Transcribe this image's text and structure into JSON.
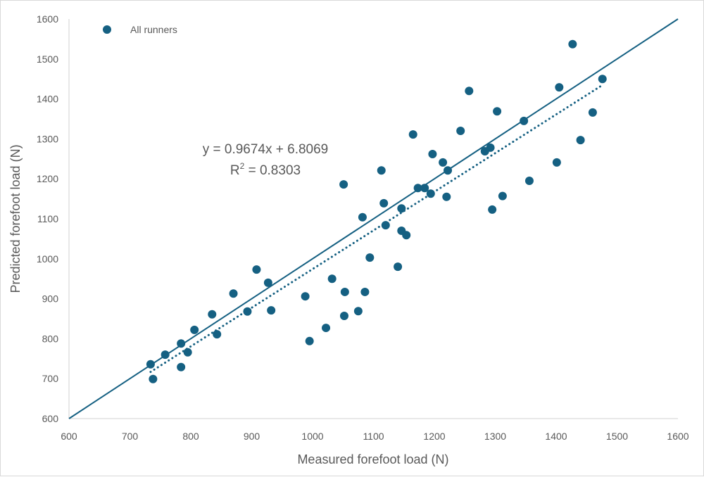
{
  "chart_data": {
    "type": "scatter",
    "title": "",
    "xlabel": "Measured forefoot  load (N)",
    "ylabel": "Predicted forefoot  load (N)",
    "xlim": [
      600,
      1600
    ],
    "ylim": [
      600,
      1600
    ],
    "xticks": [
      600,
      700,
      800,
      900,
      1000,
      1100,
      1200,
      1300,
      1400,
      1500,
      1600
    ],
    "yticks": [
      600,
      700,
      800,
      900,
      1000,
      1100,
      1200,
      1300,
      1400,
      1500,
      1600
    ],
    "grid": false,
    "legend": {
      "position": "top-left",
      "entries": [
        "All runners"
      ]
    },
    "series": [
      {
        "name": "All runners",
        "color": "#156082",
        "points": [
          [
            734,
            736
          ],
          [
            738,
            699
          ],
          [
            758,
            760
          ],
          [
            784,
            788
          ],
          [
            784,
            729
          ],
          [
            795,
            766
          ],
          [
            806,
            822
          ],
          [
            835,
            861
          ],
          [
            843,
            811
          ],
          [
            870,
            913
          ],
          [
            893,
            868
          ],
          [
            908,
            973
          ],
          [
            927,
            940
          ],
          [
            932,
            871
          ],
          [
            988,
            906
          ],
          [
            995,
            794
          ],
          [
            1022,
            827
          ],
          [
            1032,
            950
          ],
          [
            1051,
            1186
          ],
          [
            1052,
            857
          ],
          [
            1053,
            917
          ],
          [
            1075,
            869
          ],
          [
            1082,
            1104
          ],
          [
            1086,
            917
          ],
          [
            1094,
            1003
          ],
          [
            1113,
            1221
          ],
          [
            1117,
            1139
          ],
          [
            1120,
            1084
          ],
          [
            1140,
            980
          ],
          [
            1146,
            1070
          ],
          [
            1146,
            1126
          ],
          [
            1154,
            1059
          ],
          [
            1165,
            1311
          ],
          [
            1173,
            1177
          ],
          [
            1184,
            1177
          ],
          [
            1194,
            1163
          ],
          [
            1197,
            1262
          ],
          [
            1214,
            1241
          ],
          [
            1220,
            1155
          ],
          [
            1222,
            1221
          ],
          [
            1243,
            1320
          ],
          [
            1257,
            1420
          ],
          [
            1283,
            1269
          ],
          [
            1292,
            1278
          ],
          [
            1295,
            1123
          ],
          [
            1303,
            1369
          ],
          [
            1312,
            1157
          ],
          [
            1347,
            1345
          ],
          [
            1356,
            1195
          ],
          [
            1401,
            1241
          ],
          [
            1405,
            1429
          ],
          [
            1427,
            1537
          ],
          [
            1440,
            1297
          ],
          [
            1460,
            1366
          ],
          [
            1476,
            1450
          ]
        ]
      }
    ],
    "lines": [
      {
        "name": "identity line (y = x)",
        "style": "solid",
        "x": [
          600,
          1600
        ],
        "y": [
          600,
          1600
        ],
        "color": "#156082"
      },
      {
        "name": "linear trendline",
        "style": "dotted",
        "slope": 0.9674,
        "intercept": 6.8069,
        "x": [
          734,
          1476
        ],
        "color": "#156082"
      }
    ],
    "annotations": [
      {
        "text": "y = 0.9674x + 6.8069",
        "x": 1090,
        "y": 1262
      },
      {
        "text": "R² = 0.8303",
        "x": 1090,
        "y": 1217
      }
    ]
  },
  "legend": {
    "label": "All runners"
  },
  "annotation": {
    "equation": "y = 0.9674x + 6.8069",
    "r2_prefix": "R",
    "r2_sup": "2",
    "r2_value": " = 0.8303"
  },
  "axes": {
    "x_title": "Measured forefoot  load (N)",
    "y_title": "Predicted forefoot  load (N)"
  },
  "colors": {
    "marker": "#156082",
    "axis": "#bfbfbf",
    "text": "#595959"
  }
}
